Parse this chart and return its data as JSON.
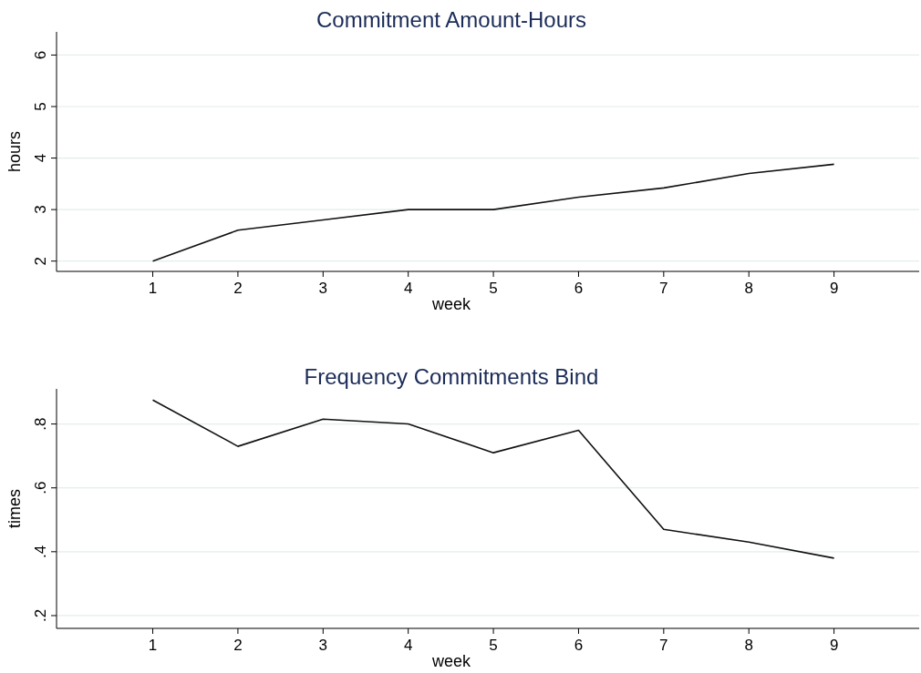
{
  "chart_data": [
    {
      "type": "line",
      "title": "Commitment Amount-Hours",
      "xlabel": "week",
      "ylabel": "hours",
      "x": [
        1,
        2,
        3,
        4,
        5,
        6,
        7,
        8,
        9
      ],
      "series": [
        {
          "color": "#111111",
          "values": [
            2.0,
            2.6,
            2.8,
            3.0,
            3.0,
            3.24,
            3.42,
            3.7,
            3.88
          ]
        }
      ],
      "xlim": [
        -0.13,
        10
      ],
      "xticks": [
        1,
        2,
        3,
        4,
        5,
        6,
        7,
        8,
        9
      ],
      "ylim": [
        1.8,
        6.45
      ],
      "yticks": [
        2,
        3,
        4,
        5,
        6
      ],
      "grid": "y"
    },
    {
      "type": "line",
      "title": "Frequency Commitments Bind",
      "xlabel": "week",
      "ylabel": "times",
      "x": [
        1,
        2,
        3,
        4,
        5,
        6,
        7,
        8,
        9
      ],
      "series": [
        {
          "color": "#111111",
          "values": [
            0.875,
            0.73,
            0.815,
            0.8,
            0.71,
            0.78,
            0.47,
            0.43,
            0.38
          ]
        }
      ],
      "xlim": [
        -0.13,
        10
      ],
      "xticks": [
        1,
        2,
        3,
        4,
        5,
        6,
        7,
        8,
        9
      ],
      "ylim": [
        0.16,
        0.91
      ],
      "yticks": [
        {
          "value": 0.2,
          "label": ".2"
        },
        {
          "value": 0.4,
          "label": ".4"
        },
        {
          "value": 0.6,
          "label": ".6"
        },
        {
          "value": 0.8,
          "label": ".8"
        }
      ],
      "grid": "y"
    }
  ]
}
